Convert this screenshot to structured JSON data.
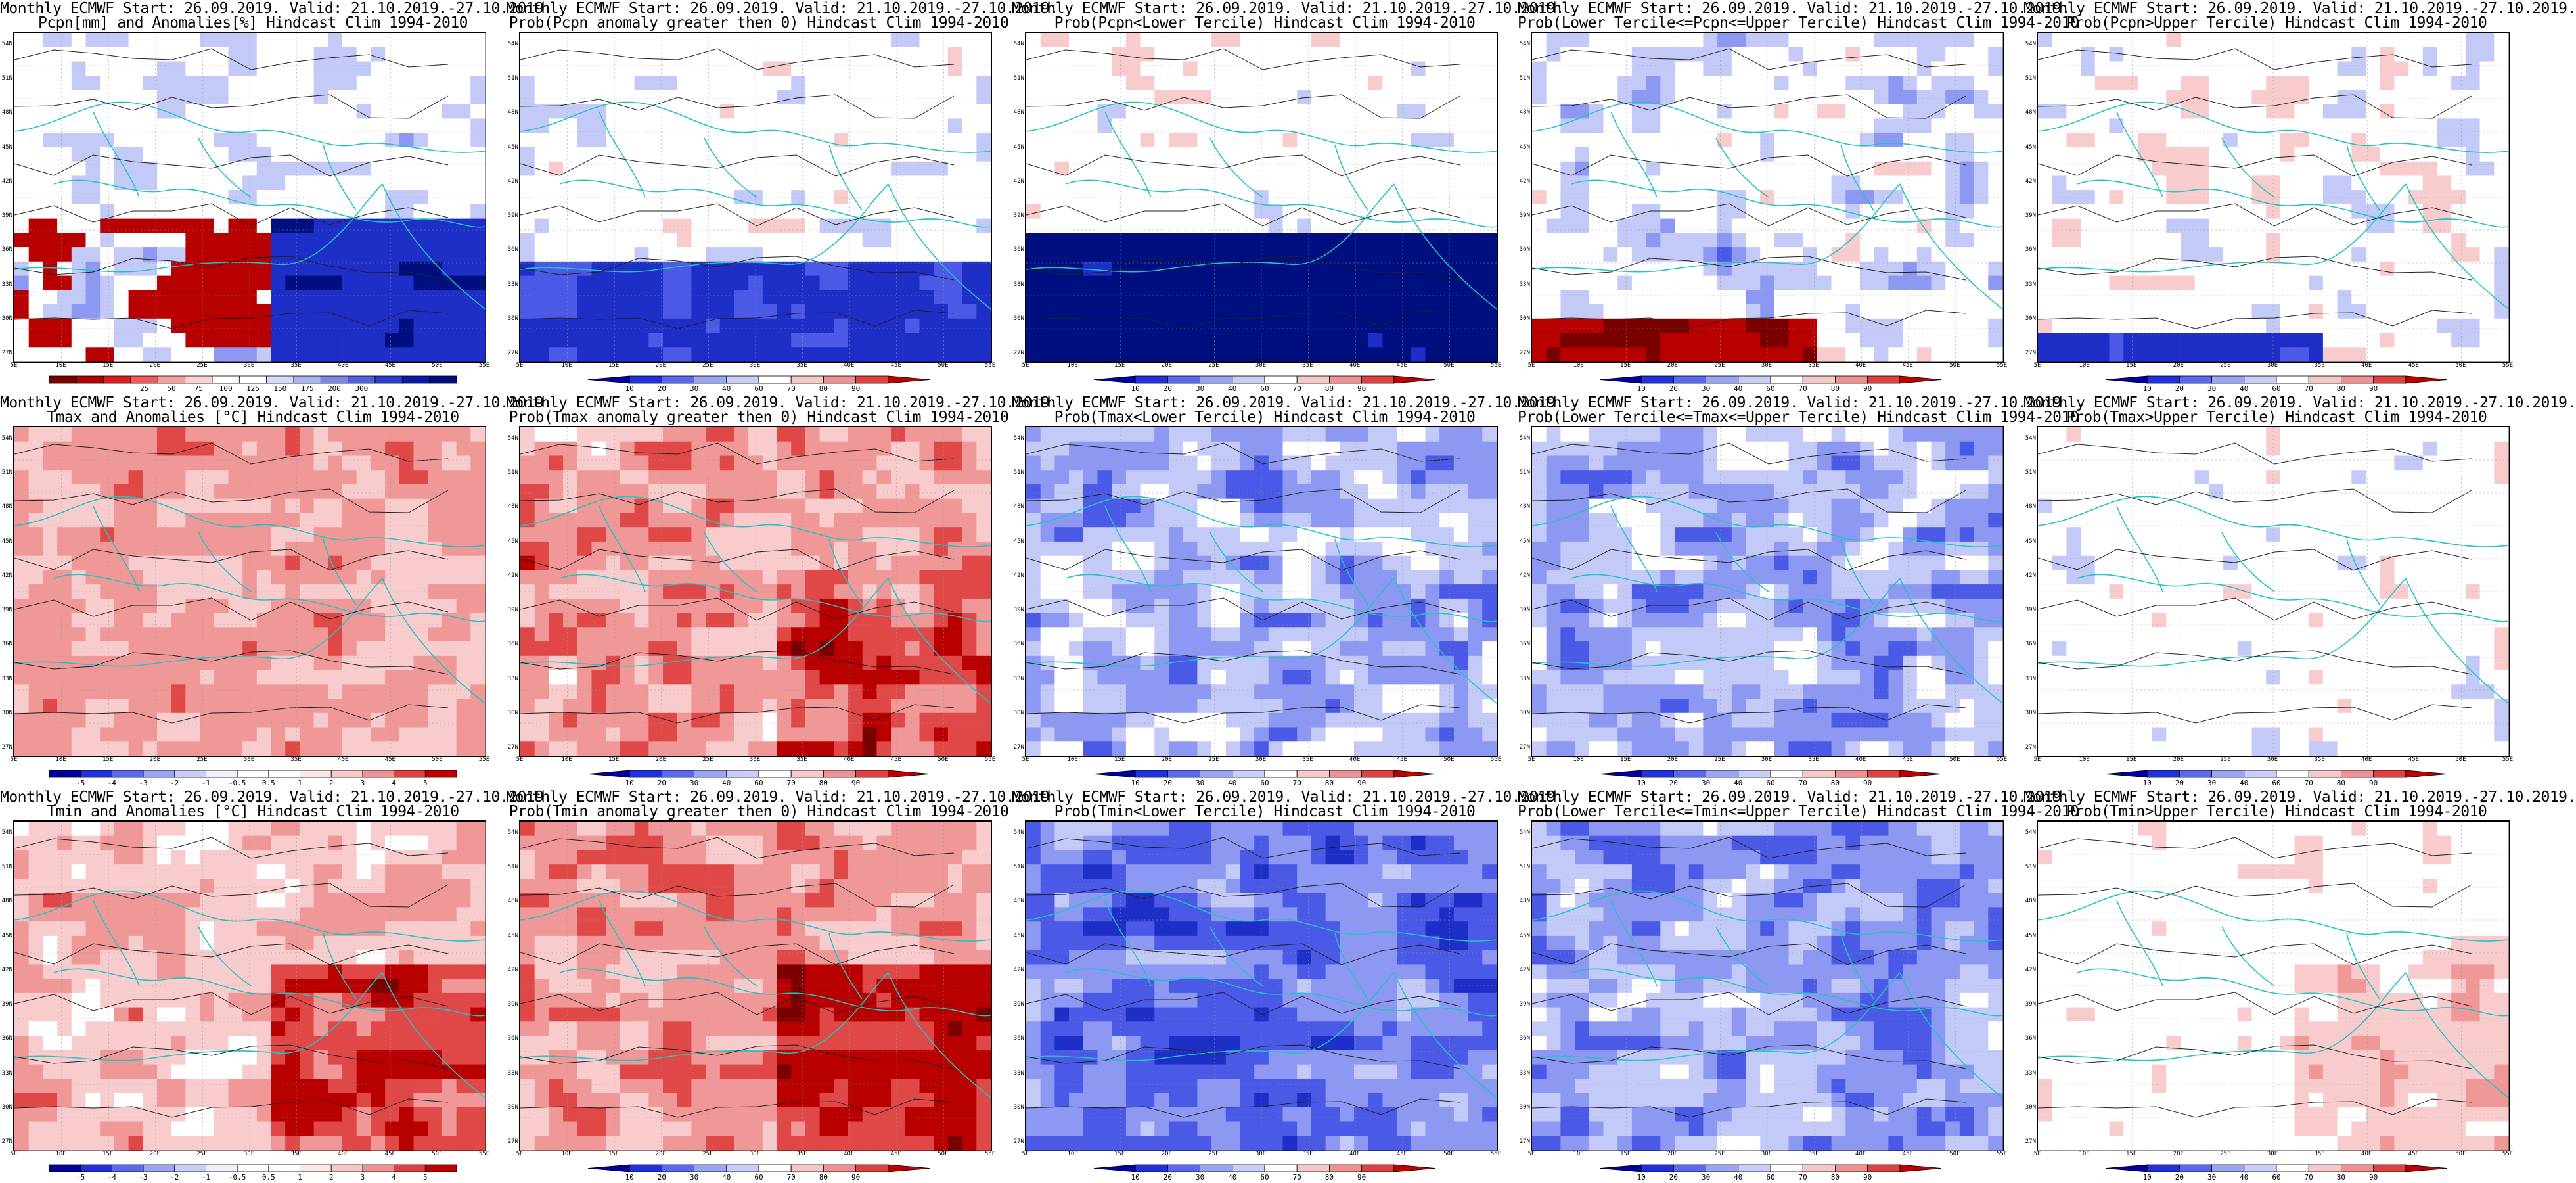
{
  "lat_ticks": [
    "54N",
    "51N",
    "48N",
    "45N",
    "42N",
    "39N",
    "36N",
    "33N",
    "30N",
    "27N"
  ],
  "lon_ticks": [
    "5E",
    "10E",
    "15E",
    "20E",
    "25E",
    "30E",
    "35E",
    "40E",
    "45E",
    "50E",
    "55E"
  ],
  "colorbars": {
    "pcpn_anom": {
      "colors": [
        "#7a0000",
        "#b40000",
        "#dc1e1e",
        "#f05a5a",
        "#f7a0a0",
        "#fbd0d0",
        "#ffffff",
        "#ffffff",
        "#d6dbf8",
        "#a9b3f0",
        "#7d88e8",
        "#5060e0",
        "#2a3cd0",
        "#0a1aa8",
        "#000f80"
      ],
      "labels": [
        "25",
        "50",
        "75",
        "100",
        "125",
        "150",
        "175",
        "200",
        "300"
      ],
      "triangles": false
    },
    "prob": {
      "colors": [
        "#0000a0",
        "#2030e0",
        "#5a6af0",
        "#9aa6f4",
        "#c8cef8",
        "#ffffff",
        "#f7c8c8",
        "#f09090",
        "#e04040",
        "#c00000"
      ],
      "labels": [
        "10",
        "20",
        "30",
        "40",
        "60",
        "70",
        "80",
        "90"
      ],
      "triangles": true
    },
    "temp_anom": {
      "colors": [
        "#0000a0",
        "#2030e0",
        "#5a6af0",
        "#9aa6f4",
        "#c8cef8",
        "#eef0fc",
        "#ffffff",
        "#ffffff",
        "#fde8e8",
        "#f7c8c8",
        "#f09090",
        "#e04040",
        "#c00000"
      ],
      "labels": [
        "-5",
        "-4",
        "-3",
        "-2",
        "-1",
        "-0.5",
        "0.5",
        "1",
        "2",
        "3",
        "4",
        "5"
      ],
      "triangles": false
    }
  },
  "panels": [
    {
      "title1": "Monthly ECMWF Start: 26.09.2019. Valid: 21.10.2019.-27.10.2019.",
      "title2": "Pcpn[mm] and Anomalies[%] Hindcast Clim 1994-2010",
      "colorbar": "pcpn_anom",
      "field": "pcpn_anom",
      "seed": 11
    },
    {
      "title1": "Monthly ECMWF Start: 26.09.2019. Valid: 21.10.2019.-27.10.2019.",
      "title2": "Prob(Pcpn anomaly greater then 0) Hindcast Clim 1994-2010",
      "colorbar": "prob",
      "field": "pcpn_prob_gt0",
      "seed": 23
    },
    {
      "title1": "Monthly ECMWF Start: 26.09.2019. Valid: 21.10.2019.-27.10.2019.",
      "title2": "Prob(Pcpn<Lower Tercile) Hindcast Clim 1994-2010",
      "colorbar": "prob",
      "field": "pcpn_lower",
      "seed": 37
    },
    {
      "title1": "Monthly ECMWF Start: 26.09.2019. Valid: 21.10.2019.-27.10.2019.",
      "title2": "Prob(Lower Tercile<=Pcpn<=Upper Tercile) Hindcast Clim 1994-2010",
      "colorbar": "prob",
      "field": "pcpn_middle",
      "seed": 41
    },
    {
      "title1": "Monthly ECMWF Start: 26.09.2019. Valid: 21.10.2019.-27.10.2019.",
      "title2": "Prob(Pcpn>Upper Tercile) Hindcast Clim 1994-2010",
      "colorbar": "prob",
      "field": "pcpn_upper",
      "seed": 53
    },
    {
      "title1": "Monthly ECMWF Start: 26.09.2019. Valid: 21.10.2019.-27.10.2019.",
      "title2": "Tmax and Anomalies [°C] Hindcast Clim 1994-2010",
      "colorbar": "temp_anom",
      "field": "tmax_anom",
      "seed": 61
    },
    {
      "title1": "Monthly ECMWF Start: 26.09.2019. Valid: 21.10.2019.-27.10.2019.",
      "title2": "Prob(Tmax anomaly greater then 0) Hindcast Clim 1994-2010",
      "colorbar": "prob",
      "field": "tmax_prob_gt0",
      "seed": 71
    },
    {
      "title1": "Monthly ECMWF Start: 26.09.2019. Valid: 21.10.2019.-27.10.2019.",
      "title2": "Prob(Tmax<Lower Tercile) Hindcast Clim 1994-2010",
      "colorbar": "prob",
      "field": "tmax_lower",
      "seed": 83
    },
    {
      "title1": "Monthly ECMWF Start: 26.09.2019. Valid: 21.10.2019.-27.10.2019.",
      "title2": "Prob(Lower Tercile<=Tmax<=Upper Tercile) Hindcast Clim 1994-2010",
      "colorbar": "prob",
      "field": "tmax_middle",
      "seed": 97
    },
    {
      "title1": "Monthly ECMWF Start: 26.09.2019. Valid: 21.10.2019.-27.10.2019.",
      "title2": "Prob(Tmax>Upper Tercile) Hindcast Clim 1994-2010",
      "colorbar": "prob",
      "field": "tmax_upper",
      "seed": 101
    },
    {
      "title1": "Monthly ECMWF Start: 26.09.2019. Valid: 21.10.2019.-27.10.2019.",
      "title2": "Tmin and Anomalies [°C] Hindcast Clim 1994-2010",
      "colorbar": "temp_anom",
      "field": "tmin_anom",
      "seed": 113
    },
    {
      "title1": "Monthly ECMWF Start: 26.09.2019. Valid: 21.10.2019.-27.10.2019.",
      "title2": "Prob(Tmin anomaly greater then 0) Hindcast Clim 1994-2010",
      "colorbar": "prob",
      "field": "tmin_prob_gt0",
      "seed": 127
    },
    {
      "title1": "Monthly ECMWF Start: 26.09.2019. Valid: 21.10.2019.-27.10.2019.",
      "title2": "Prob(Tmin<Lower Tercile) Hindcast Clim 1994-2010",
      "colorbar": "prob",
      "field": "tmin_lower",
      "seed": 131
    },
    {
      "title1": "Monthly ECMWF Start: 26.09.2019. Valid: 21.10.2019.-27.10.2019.",
      "title2": "Prob(Lower Tercile<=Tmin<=Upper Tercile) Hindcast Clim 1994-2010",
      "colorbar": "prob",
      "field": "tmin_middle",
      "seed": 139
    },
    {
      "title1": "Monthly ECMWF Start: 26.09.2019. Valid: 21.10.2019.-27.10.2019.",
      "title2": "Prob(Tmin>Upper Tercile) Hindcast Clim 1994-2010",
      "colorbar": "prob",
      "field": "tmin_upper",
      "seed": 149
    }
  ]
}
